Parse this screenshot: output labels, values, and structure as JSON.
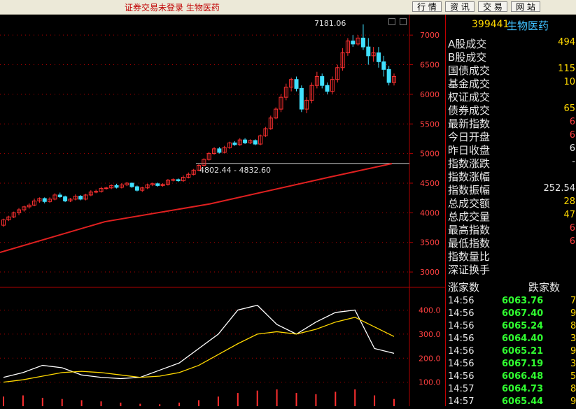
{
  "topbar": {
    "title": "证券交易未登录 生物医药",
    "buttons": [
      "行 情",
      "资 讯",
      "交 易",
      "网 站"
    ]
  },
  "colors": {
    "up": "#ff3030",
    "down": "#40e0ff",
    "ma": "#e02020",
    "axis": "#b00000",
    "label": "#ff4040",
    "macd_bar": "#ff3030"
  },
  "chart_data": {
    "type": "candlestick",
    "price_axis": {
      "min": 2800,
      "max": 7250,
      "ticks": [
        3000,
        3500,
        4000,
        4500,
        5000,
        5500,
        6000,
        6500,
        7000
      ]
    },
    "annotations": {
      "high_label": "7181.06",
      "range_label": "4802.44 - 4832.60",
      "range_price": 4832.6
    },
    "candles": [
      [
        3790,
        3880,
        3760,
        3900
      ],
      [
        3880,
        3930,
        3860,
        3950
      ],
      [
        3930,
        4000,
        3910,
        4020
      ],
      [
        4000,
        4050,
        3960,
        4080
      ],
      [
        4050,
        4100,
        4020,
        4120
      ],
      [
        4100,
        4130,
        4070,
        4160
      ],
      [
        4130,
        4200,
        4110,
        4240
      ],
      [
        4200,
        4240,
        4170,
        4260
      ],
      [
        4240,
        4190,
        4160,
        4260
      ],
      [
        4190,
        4230,
        4170,
        4260
      ],
      [
        4230,
        4300,
        4210,
        4330
      ],
      [
        4300,
        4270,
        4250,
        4340
      ],
      [
        4270,
        4200,
        4180,
        4290
      ],
      [
        4200,
        4230,
        4180,
        4250
      ],
      [
        4230,
        4280,
        4210,
        4310
      ],
      [
        4280,
        4230,
        4210,
        4300
      ],
      [
        4230,
        4300,
        4210,
        4320
      ],
      [
        4300,
        4350,
        4280,
        4380
      ],
      [
        4350,
        4360,
        4330,
        4390
      ],
      [
        4360,
        4410,
        4340,
        4440
      ],
      [
        4410,
        4420,
        4390,
        4440
      ],
      [
        4420,
        4460,
        4400,
        4480
      ],
      [
        4460,
        4430,
        4410,
        4490
      ],
      [
        4430,
        4470,
        4410,
        4500
      ],
      [
        4470,
        4500,
        4450,
        4520
      ],
      [
        4500,
        4440,
        4420,
        4510
      ],
      [
        4440,
        4380,
        4360,
        4460
      ],
      [
        4380,
        4420,
        4350,
        4440
      ],
      [
        4420,
        4470,
        4400,
        4490
      ],
      [
        4470,
        4490,
        4450,
        4510
      ],
      [
        4490,
        4460,
        4440,
        4510
      ],
      [
        4460,
        4480,
        4440,
        4500
      ],
      [
        4480,
        4550,
        4460,
        4570
      ],
      [
        4550,
        4560,
        4530,
        4580
      ],
      [
        4560,
        4540,
        4520,
        4580
      ],
      [
        4540,
        4600,
        4520,
        4630
      ],
      [
        4600,
        4650,
        4580,
        4680
      ],
      [
        4650,
        4720,
        4630,
        4740
      ],
      [
        4720,
        4800,
        4700,
        4820
      ],
      [
        4800,
        4900,
        4780,
        4920
      ],
      [
        4900,
        5000,
        4880,
        5030
      ],
      [
        5000,
        5080,
        4980,
        5110
      ],
      [
        5080,
        5020,
        5000,
        5110
      ],
      [
        5020,
        5100,
        5000,
        5130
      ],
      [
        5100,
        5180,
        5080,
        5200
      ],
      [
        5180,
        5150,
        5130,
        5210
      ],
      [
        5150,
        5230,
        5130,
        5260
      ],
      [
        5230,
        5180,
        5160,
        5260
      ],
      [
        5180,
        5220,
        5160,
        5240
      ],
      [
        5220,
        5160,
        5140,
        5240
      ],
      [
        5160,
        5300,
        5140,
        5320
      ],
      [
        5300,
        5420,
        5280,
        5450
      ],
      [
        5420,
        5600,
        5400,
        5640
      ],
      [
        5600,
        5750,
        5580,
        5780
      ],
      [
        5750,
        5950,
        5700,
        6000
      ],
      [
        5950,
        6120,
        5900,
        6180
      ],
      [
        6120,
        6250,
        6050,
        6280
      ],
      [
        6250,
        6100,
        6050,
        6300
      ],
      [
        6100,
        5750,
        5700,
        6150
      ],
      [
        5750,
        5900,
        5680,
        5950
      ],
      [
        5900,
        6150,
        5850,
        6200
      ],
      [
        6150,
        6300,
        6100,
        6380
      ],
      [
        6300,
        6150,
        6100,
        6350
      ],
      [
        6150,
        6050,
        6000,
        6200
      ],
      [
        6050,
        6250,
        6000,
        6300
      ],
      [
        6250,
        6450,
        6200,
        6500
      ],
      [
        6450,
        6700,
        6400,
        6780
      ],
      [
        6700,
        6900,
        6650,
        6950
      ],
      [
        6900,
        6850,
        6800,
        7000
      ],
      [
        6850,
        6950,
        6820,
        7000
      ],
      [
        6950,
        6800,
        6750,
        7181
      ],
      [
        6800,
        6650,
        6500,
        6950
      ],
      [
        6650,
        6700,
        6550,
        6800
      ],
      [
        6700,
        6550,
        6450,
        6800
      ],
      [
        6550,
        6420,
        6300,
        6650
      ],
      [
        6420,
        6200,
        6150,
        6480
      ],
      [
        6200,
        6300,
        6150,
        6350
      ]
    ],
    "ma_line": [
      3330,
      3850,
      4150,
      4600,
      4830
    ],
    "macd": {
      "axis": {
        "min": 0,
        "max": 480,
        "ticks": [
          100.0,
          200.0,
          300.0,
          400.0
        ],
        "tick_labels": [
          "100.0",
          "200.0",
          "300.0",
          "400.0"
        ]
      },
      "fast": [
        120,
        140,
        170,
        160,
        130,
        120,
        115,
        120,
        150,
        180,
        240,
        300,
        400,
        420,
        340,
        300,
        350,
        390,
        400,
        240,
        220
      ],
      "slow": [
        100,
        110,
        125,
        140,
        145,
        140,
        130,
        120,
        125,
        140,
        170,
        215,
        260,
        300,
        310,
        300,
        320,
        350,
        370,
        330,
        290
      ],
      "bars": [
        40,
        45,
        35,
        30,
        25,
        20,
        15,
        10,
        8,
        15,
        25,
        40,
        55,
        65,
        70,
        55,
        50,
        60,
        70,
        45,
        30
      ]
    }
  },
  "stats": {
    "code": "399441",
    "name": "生物医药",
    "rows": [
      {
        "label": "A股成交",
        "value": "494",
        "color": "yellow"
      },
      {
        "label": "B股成交",
        "value": "",
        "color": "yellow"
      },
      {
        "label": "国债成交",
        "value": "115",
        "color": "yellow"
      },
      {
        "label": "基金成交",
        "value": "10",
        "color": "yellow"
      },
      {
        "label": "权证成交",
        "value": "",
        "color": "yellow"
      },
      {
        "label": "债券成交",
        "value": "65",
        "color": "yellow"
      },
      {
        "label": "最新指数",
        "value": "6",
        "color": "red"
      },
      {
        "label": "今日开盘",
        "value": "6",
        "color": "red"
      },
      {
        "label": "昨日收盘",
        "value": "6",
        "color": "white"
      },
      {
        "label": "指数涨跌",
        "value": "-",
        "color": "white"
      },
      {
        "label": "指数涨幅",
        "value": "",
        "color": "white"
      },
      {
        "label": "指数振幅",
        "value": "252.54",
        "color": "white"
      },
      {
        "label": "总成交额",
        "value": "28",
        "color": "yellow"
      },
      {
        "label": "总成交量",
        "value": "47",
        "color": "yellow"
      },
      {
        "label": "最高指数",
        "value": "6",
        "color": "red"
      },
      {
        "label": "最低指数",
        "value": "6",
        "color": "red"
      },
      {
        "label": "指数量比",
        "value": "",
        "color": "white"
      },
      {
        "label": "深证换手",
        "value": "",
        "color": "white"
      }
    ],
    "advance_label": "涨家数",
    "decline_label": "跌家数"
  },
  "ticks": [
    {
      "time": "14:56",
      "price": "6063.76",
      "vol": "7"
    },
    {
      "time": "14:56",
      "price": "6067.40",
      "vol": "9"
    },
    {
      "time": "14:56",
      "price": "6065.24",
      "vol": "8"
    },
    {
      "time": "14:56",
      "price": "6064.40",
      "vol": "3"
    },
    {
      "time": "14:56",
      "price": "6065.21",
      "vol": "9"
    },
    {
      "time": "14:56",
      "price": "6067.19",
      "vol": "3"
    },
    {
      "time": "14:56",
      "price": "6066.48",
      "vol": "5"
    },
    {
      "time": "14:57",
      "price": "6064.73",
      "vol": "8"
    },
    {
      "time": "14:57",
      "price": "6065.44",
      "vol": "9"
    }
  ]
}
